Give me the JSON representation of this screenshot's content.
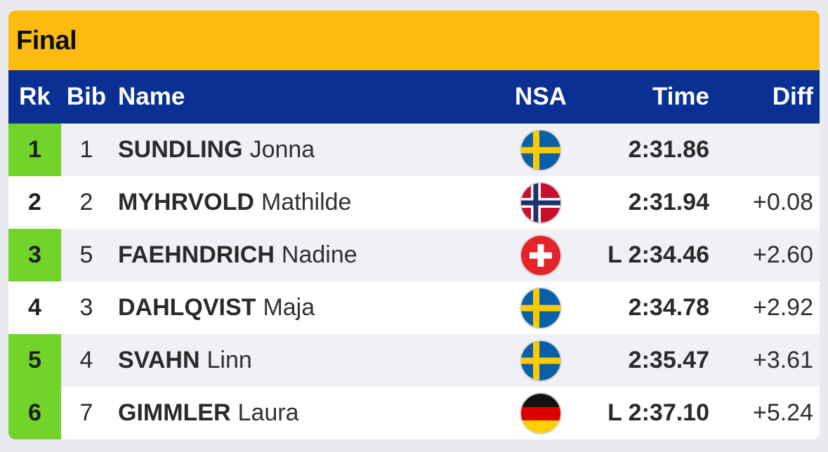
{
  "title": "Final",
  "columns": {
    "rk": "Rk",
    "bib": "Bib",
    "name": "Name",
    "nsa": "NSA",
    "time": "Time",
    "diff": "Diff"
  },
  "colors": {
    "title_bar": "#fbbb10",
    "header_bar": "#0b3094",
    "qualified_highlight": "#72d32a"
  },
  "rows": [
    {
      "rk": "1",
      "bib": "1",
      "surname": "SUNDLING",
      "given": "Jonna",
      "nsa_icon": "sweden-flag-icon",
      "time": "2:31.86",
      "diff": "",
      "highlight": true
    },
    {
      "rk": "2",
      "bib": "2",
      "surname": "MYHRVOLD",
      "given": "Mathilde",
      "nsa_icon": "norway-flag-icon",
      "time": "2:31.94",
      "diff": "+0.08",
      "highlight": false
    },
    {
      "rk": "3",
      "bib": "5",
      "surname": "FAEHNDRICH",
      "given": "Nadine",
      "nsa_icon": "switzerland-flag-icon",
      "time": "L 2:34.46",
      "diff": "+2.60",
      "highlight": true
    },
    {
      "rk": "4",
      "bib": "3",
      "surname": "DAHLQVIST",
      "given": "Maja",
      "nsa_icon": "sweden-flag-icon",
      "time": "2:34.78",
      "diff": "+2.92",
      "highlight": false
    },
    {
      "rk": "5",
      "bib": "4",
      "surname": "SVAHN",
      "given": "Linn",
      "nsa_icon": "sweden-flag-icon",
      "time": "2:35.47",
      "diff": "+3.61",
      "highlight": true
    },
    {
      "rk": "6",
      "bib": "7",
      "surname": "GIMMLER",
      "given": "Laura",
      "nsa_icon": "germany-flag-icon",
      "time": "L 2:37.10",
      "diff": "+5.24",
      "highlight": true
    }
  ]
}
